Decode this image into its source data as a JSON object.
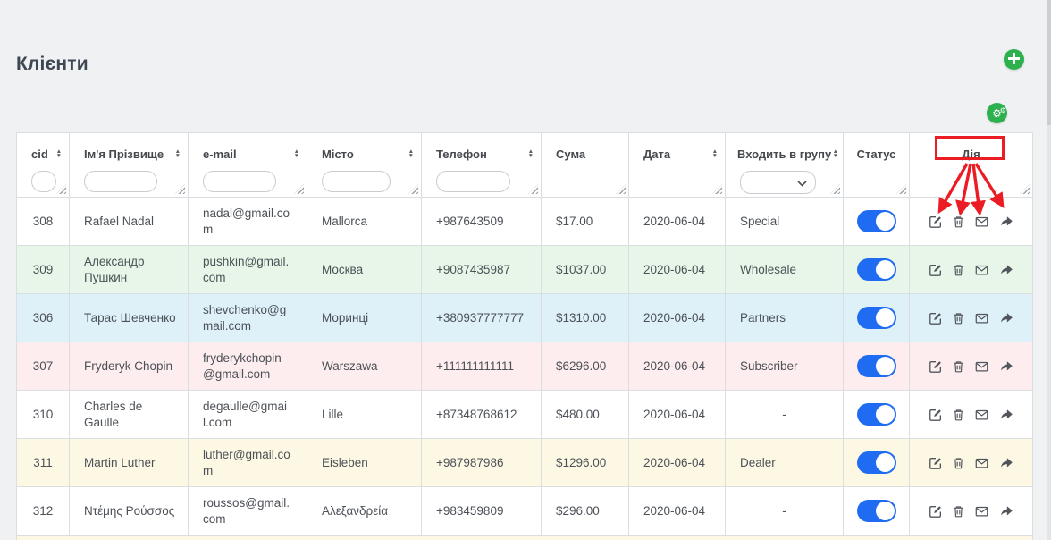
{
  "page": {
    "title": "Клієнти"
  },
  "colors": {
    "accent_green": "#2cb14e",
    "toggle_blue": "#1f6cf2",
    "annotation_red": "#ec1c24",
    "row_green": "#e8f6e9",
    "row_blue": "#def1f8",
    "row_pink": "#fdedee",
    "row_cream": "#fcf8e3"
  },
  "toolbar": {
    "add_button": "add-client",
    "settings_button": "table-settings"
  },
  "table": {
    "columns": [
      {
        "key": "cid",
        "label": "cid",
        "sortable": true,
        "filter": "input"
      },
      {
        "key": "name",
        "label": "Ім'я Прізвище",
        "sortable": true,
        "filter": "input"
      },
      {
        "key": "email",
        "label": "e-mail",
        "sortable": true,
        "filter": "input"
      },
      {
        "key": "city",
        "label": "Місто",
        "sortable": true,
        "filter": "input"
      },
      {
        "key": "phone",
        "label": "Телефон",
        "sortable": true,
        "filter": "input"
      },
      {
        "key": "sum",
        "label": "Сума",
        "sortable": false,
        "filter": "none"
      },
      {
        "key": "date",
        "label": "Дата",
        "sortable": true,
        "filter": "none"
      },
      {
        "key": "group",
        "label": "Входить в групу",
        "sortable": true,
        "filter": "select"
      },
      {
        "key": "status",
        "label": "Статус",
        "sortable": false,
        "filter": "none"
      },
      {
        "key": "action",
        "label": "Дія",
        "sortable": false,
        "filter": "none"
      }
    ],
    "filter_values": {
      "cid": "",
      "name": "",
      "email": "",
      "city": "",
      "phone": "",
      "group": ""
    },
    "rows": [
      {
        "cid": "308",
        "name": "Rafael Nadal",
        "email": "nadal@gmail.com",
        "city": "Mallorca",
        "phone": "+987643509",
        "sum": "$17.00",
        "date": "2020-06-04",
        "group": "Special",
        "status": "on",
        "color": "white"
      },
      {
        "cid": "309",
        "name": "Александр Пушкин",
        "email": "pushkin@gmail.com",
        "city": "Москва",
        "phone": "+9087435987",
        "sum": "$1037.00",
        "date": "2020-06-04",
        "group": "Wholesale",
        "status": "on",
        "color": "green"
      },
      {
        "cid": "306",
        "name": "Тарас Шевченко",
        "email": "shevchenko@gmail.com",
        "city": "Моринці",
        "phone": "+380937777777",
        "sum": "$1310.00",
        "date": "2020-06-04",
        "group": "Partners",
        "status": "on",
        "color": "blue"
      },
      {
        "cid": "307",
        "name": "Fryderyk Chopin",
        "email": "fryderykchopin@gmail.com",
        "city": "Warszawa",
        "phone": "+111111111111",
        "sum": "$6296.00",
        "date": "2020-06-04",
        "group": "Subscriber",
        "status": "on",
        "color": "pink"
      },
      {
        "cid": "310",
        "name": "Charles de Gaulle",
        "email": "degaulle@gmail.com",
        "city": "Lille",
        "phone": "+87348768612",
        "sum": "$480.00",
        "date": "2020-06-04",
        "group": "-",
        "status": "on",
        "color": "white"
      },
      {
        "cid": "311",
        "name": "Martin Luther",
        "email": "luther@gmail.com",
        "city": "Eisleben",
        "phone": "+987987986",
        "sum": "$1296.00",
        "date": "2020-06-04",
        "group": "Dealer",
        "status": "on",
        "color": "cream"
      },
      {
        "cid": "312",
        "name": "Ντέμης Ρούσσος",
        "email": "roussos@gmail.com",
        "city": "Αλεξανδρεία",
        "phone": "+983459809",
        "sum": "$296.00",
        "date": "2020-06-04",
        "group": "-",
        "status": "on",
        "color": "white"
      }
    ],
    "partial_row_color": "cream"
  },
  "action_icons": [
    {
      "icon": "edit-icon",
      "action": "edit"
    },
    {
      "icon": "trash-icon",
      "action": "delete"
    },
    {
      "icon": "envelope-icon",
      "action": "email"
    },
    {
      "icon": "share-icon",
      "action": "share"
    }
  ],
  "annotation": {
    "highlighted_column": "Дія",
    "arrow_count": 4,
    "color": "#ec1c24"
  }
}
